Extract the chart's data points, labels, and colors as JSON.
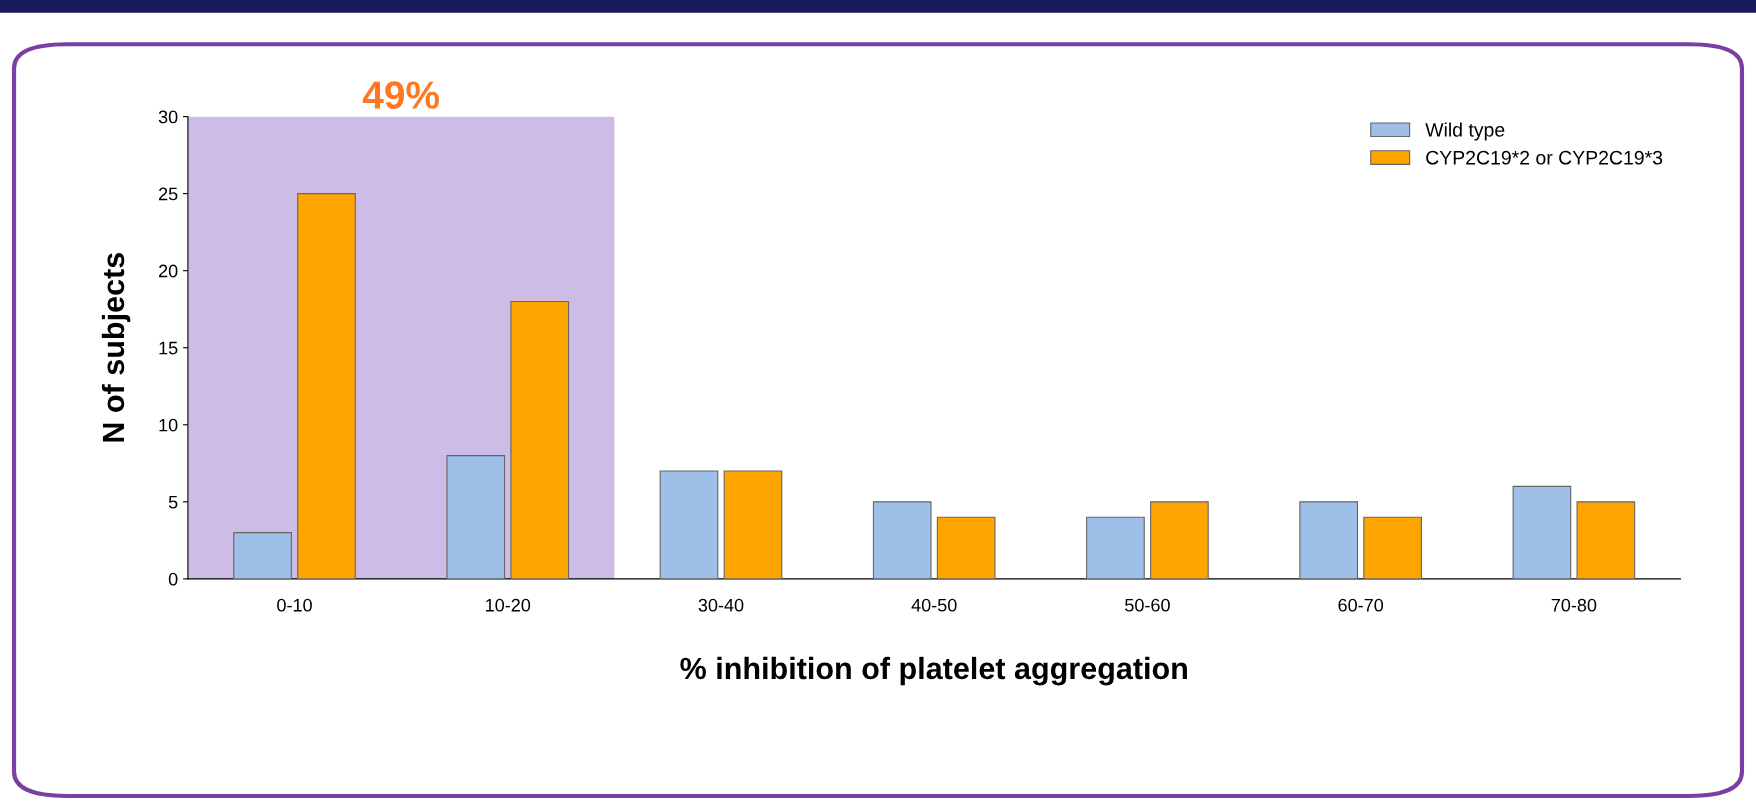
{
  "chart_data": {
    "type": "bar",
    "xlabel": "% inhibition of platelet aggregation",
    "ylabel": "N of subjects",
    "categories": [
      "0-10",
      "10-20",
      "30-40",
      "40-50",
      "50-60",
      "60-70",
      "70-80"
    ],
    "series": [
      {
        "name": "Wild type",
        "color": "#9dbfe8",
        "values": [
          3,
          8,
          7,
          5,
          4,
          5,
          6
        ]
      },
      {
        "name": "CYP2C19*2 or CYP2C19*3",
        "color": "#ffa500",
        "values": [
          25,
          18,
          7,
          4,
          5,
          4,
          5
        ]
      }
    ],
    "ylim": [
      0,
      30
    ],
    "yticks": [
      0,
      5,
      10,
      15,
      20,
      25,
      30
    ],
    "bands": [
      {
        "axis": "x",
        "from": "0-10",
        "to": "10-20",
        "label": "49%",
        "color": "#cdbce6"
      }
    ],
    "legend": "top right",
    "grid": false
  }
}
